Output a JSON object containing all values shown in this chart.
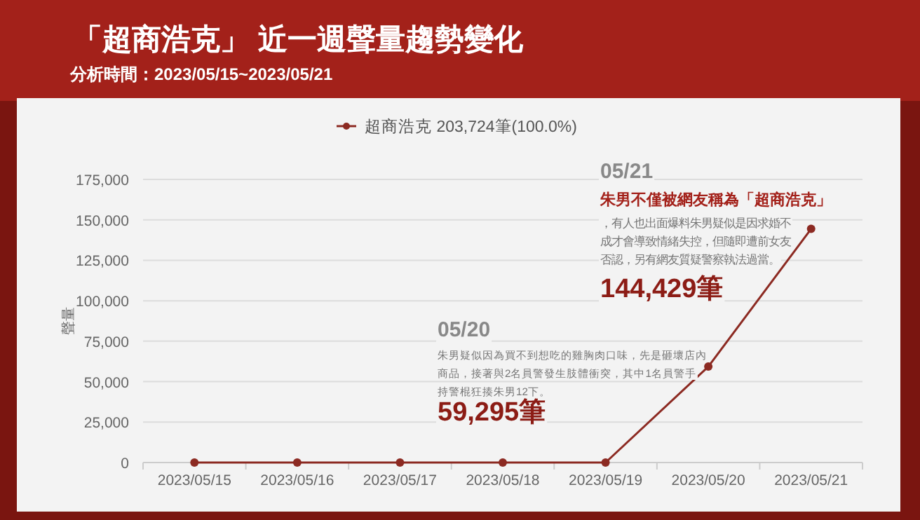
{
  "chart_data": {
    "type": "line",
    "title": "「超商浩克」 近一週聲量趨勢變化",
    "subtitle": "分析時間：2023/05/15~2023/05/21",
    "ylabel": "聲量",
    "categories": [
      "2023/05/15",
      "2023/05/16",
      "2023/05/17",
      "2023/05/18",
      "2023/05/19",
      "2023/05/20",
      "2023/05/21"
    ],
    "series": [
      {
        "name": "超商浩克 203,724筆(100.0%)",
        "color": "#8c2a22",
        "values": [
          0,
          0,
          0,
          0,
          0,
          59295,
          144429
        ]
      }
    ],
    "ylim": [
      0,
      175000
    ],
    "yticks": [
      {
        "value": 0,
        "label": "0"
      },
      {
        "value": 25000,
        "label": "25,000"
      },
      {
        "value": 50000,
        "label": "50,000"
      },
      {
        "value": 75000,
        "label": "75,000"
      },
      {
        "value": 100000,
        "label": "100,000"
      },
      {
        "value": 125000,
        "label": "125,000"
      },
      {
        "value": 150000,
        "label": "150,000"
      },
      {
        "value": 175000,
        "label": "175,000"
      }
    ],
    "grid": "y",
    "legend": "top",
    "marker": "circle",
    "line_style": "solid",
    "annotations": [
      "05/21",
      "朱男不僅被網友稱為「超商浩克」",
      "，有人也出面爆料朱男疑似是因求婚不成才會導致情緒失控，但隨即遭前女友否認，另有網友質疑警察執法過當。",
      "144,429筆",
      "05/20",
      "朱男疑似因為買不到想吃的雞胸肉口味，先是砸壞店內商品，接著與2名員警發生肢體衝突，其中1名員警手持警棍狂揍朱男12下。",
      "59,295筆"
    ]
  }
}
